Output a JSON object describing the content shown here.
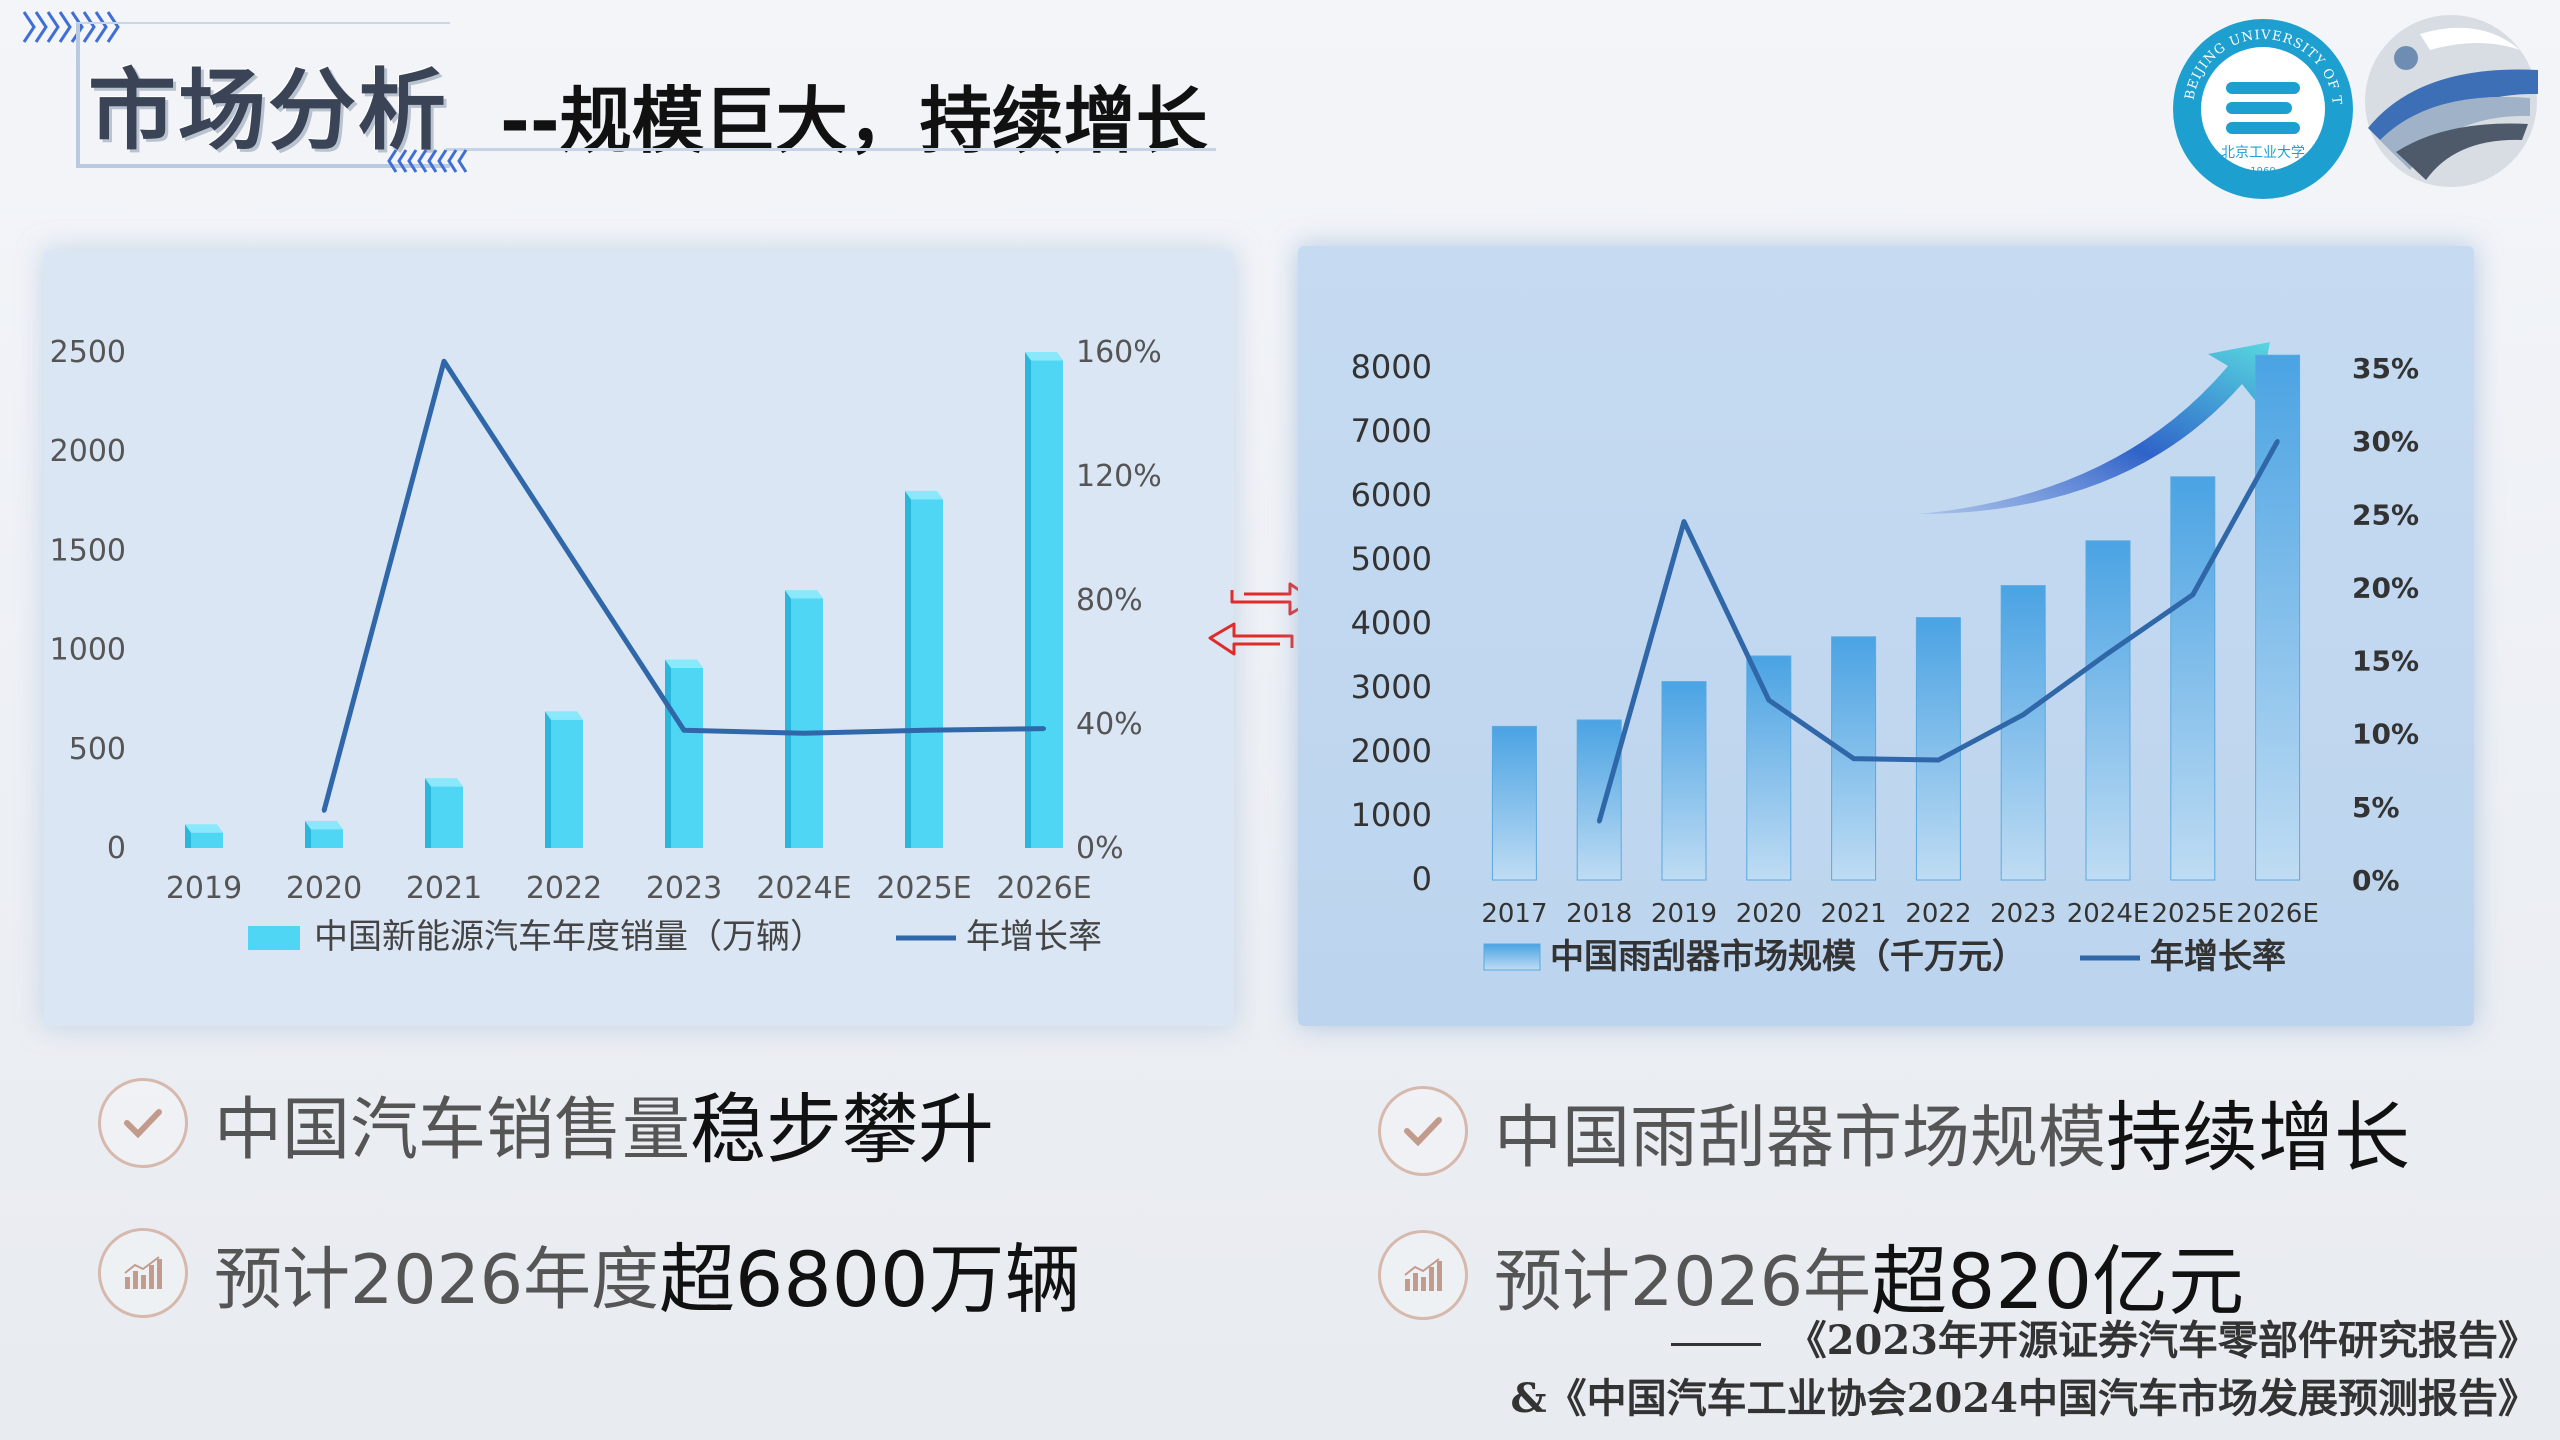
{
  "header": {
    "title": "市场分析",
    "subtitle": "--规模巨大，持续增长"
  },
  "logos": {
    "university_text": "BEIJING UNIVERSITY OF TECHNOLOGY",
    "university_cn": "北京工业大学",
    "university_year": "1960"
  },
  "colors": {
    "bar_left": "#4fd6f4",
    "bar_right": "#5aaee6",
    "line": "#2f67a8",
    "accent_circle": "#1d9fd0"
  },
  "chart_data": [
    {
      "type": "bar",
      "categories": [
        "2019",
        "2020",
        "2021",
        "2022",
        "2023",
        "2024E",
        "2025E",
        "2026E"
      ],
      "series": [
        {
          "name": "中国新能源汽车年度销量（万辆）",
          "type": "bar",
          "axis": "left",
          "values": [
            120,
            137,
            352,
            689,
            950,
            1300,
            1800,
            2500
          ]
        },
        {
          "name": "年增长率",
          "type": "line",
          "axis": "right",
          "values": [
            null,
            0.12,
            1.57,
            null,
            0.38,
            0.37,
            0.38,
            0.385
          ]
        }
      ],
      "yticks_left": [
        "0",
        "500",
        "1000",
        "1500",
        "2000",
        "2500"
      ],
      "yticks_right": [
        "0%",
        "40%",
        "80%",
        "120%",
        "160%"
      ],
      "ylim_left": [
        0,
        2500
      ],
      "ylim_right": [
        0,
        1.6
      ],
      "legend": [
        "中国新能源汽车年度销量（万辆）",
        "年增长率"
      ],
      "legend_position": "bottom",
      "grid": false
    },
    {
      "type": "bar",
      "categories": [
        "2017",
        "2018",
        "2019",
        "2020",
        "2021",
        "2022",
        "2023",
        "2024E",
        "2025E",
        "2026E"
      ],
      "series": [
        {
          "name": "中国雨刮器市场规模（千万元）",
          "type": "bar",
          "axis": "left",
          "values": [
            2400,
            2500,
            3100,
            3500,
            3800,
            4100,
            4600,
            5300,
            6300,
            8200
          ]
        },
        {
          "name": "年增长率",
          "type": "line",
          "axis": "right",
          "values": [
            null,
            0.04,
            0.245,
            0.123,
            0.083,
            0.082,
            0.113,
            0.155,
            0.195,
            0.3
          ]
        }
      ],
      "yticks_left": [
        "0",
        "1000",
        "2000",
        "3000",
        "4000",
        "5000",
        "6000",
        "7000",
        "8000"
      ],
      "yticks_right": [
        "0%",
        "5%",
        "10%",
        "15%",
        "20%",
        "25%",
        "30%",
        "35%"
      ],
      "ylim_left": [
        0,
        8000
      ],
      "ylim_right": [
        0,
        0.35
      ],
      "legend": [
        "中国雨刮器市场规模（千万元）",
        "年增长率"
      ],
      "legend_position": "bottom",
      "grid": false
    }
  ],
  "bullets": {
    "left1_plain": "中国汽车销售量",
    "left1_bold": "稳步攀升",
    "left2_plain": "预计2026年度",
    "left2_bold": "超6800万辆",
    "right1_plain": "中国雨刮器市场规模",
    "right1_bold": "持续增长",
    "right2_plain": "预计2026年",
    "right2_bold": "超820亿元"
  },
  "sources": {
    "line1": "《2023年开源证券汽车零部件研究报告》",
    "line2": "&《中国汽车工业协会2024中国汽车市场发展预测报告》"
  }
}
